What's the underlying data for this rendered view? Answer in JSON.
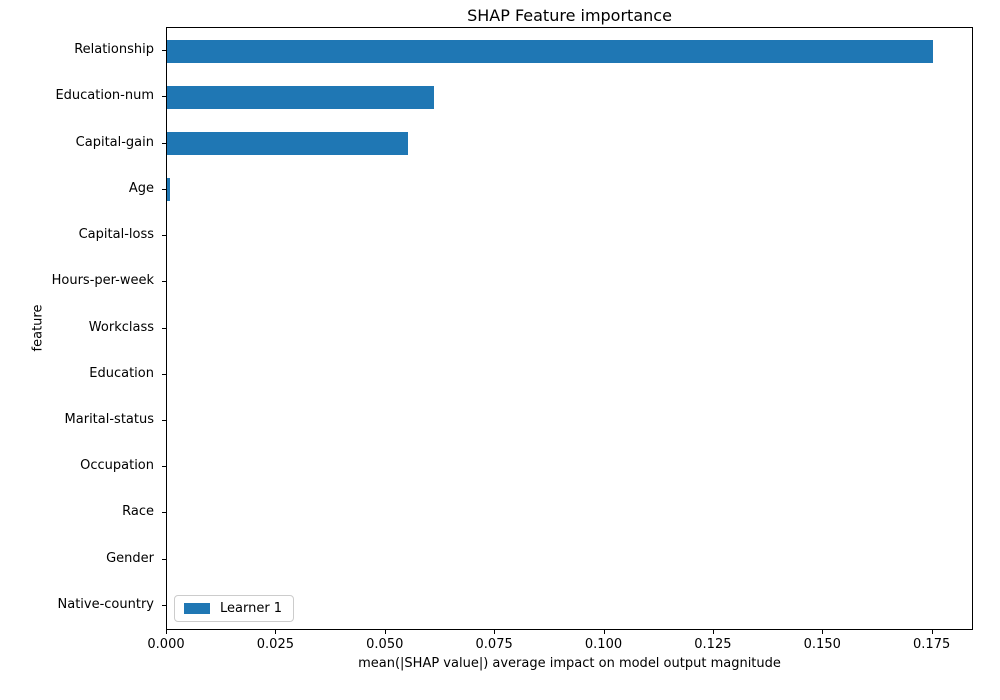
{
  "chart_data": {
    "type": "bar",
    "orientation": "horizontal",
    "title": "SHAP Feature importance",
    "xlabel": "mean(|SHAP value|) average impact on model output magnitude",
    "ylabel": "feature",
    "categories": [
      "Relationship",
      "Education-num",
      "Capital-gain",
      "Age",
      "Capital-loss",
      "Hours-per-week",
      "Workclass",
      "Education",
      "Marital-status",
      "Occupation",
      "Race",
      "Gender",
      "Native-country"
    ],
    "series": [
      {
        "name": "Learner 1",
        "color": "#1f77b4",
        "values": [
          0.175,
          0.061,
          0.055,
          0.0006,
          0,
          0,
          0,
          0,
          0,
          0,
          0,
          0,
          0
        ]
      }
    ],
    "xlim": [
      0,
      0.184
    ],
    "xticks": [
      0.0,
      0.025,
      0.05,
      0.075,
      0.1,
      0.125,
      0.15,
      0.175
    ],
    "xtick_labels": [
      "0.000",
      "0.025",
      "0.050",
      "0.075",
      "0.100",
      "0.125",
      "0.150",
      "0.175"
    ],
    "grid": false,
    "legend": {
      "position": "lower left",
      "entries": [
        "Learner 1"
      ]
    }
  }
}
